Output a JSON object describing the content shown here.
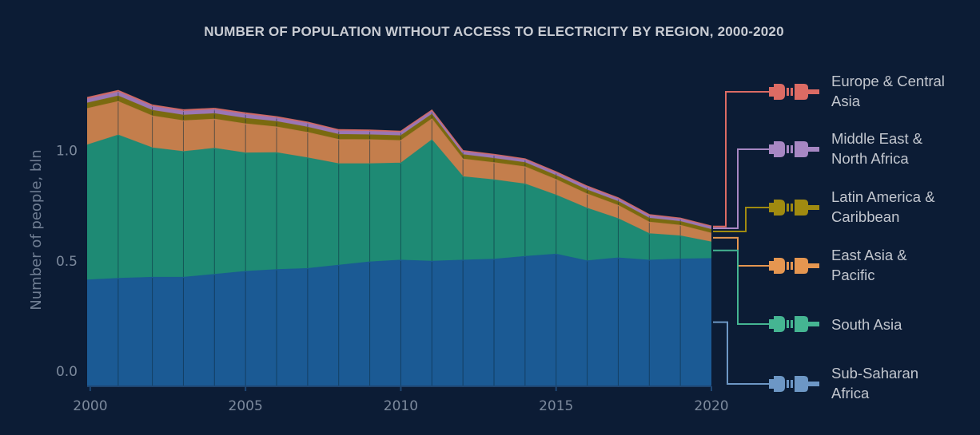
{
  "chart_data": {
    "type": "area",
    "stacked": true,
    "title": "NUMBER OF POPULATION  WITHOUT ACCESS TO ELECTRICITY  BY REGION, 2000-2020",
    "ylabel": "Number of people, bln",
    "xlabel": "",
    "x": [
      1999.9,
      2000.9,
      2002,
      2003,
      2004,
      2005,
      2006,
      2007,
      2008,
      2009,
      2010,
      2011,
      2012,
      2013,
      2014,
      2015,
      2016,
      2017,
      2018,
      2019,
      2020
    ],
    "xlim": [
      1999.9,
      2020
    ],
    "ylim": [
      0,
      1.35
    ],
    "x_ticks": [
      {
        "value": 2000,
        "label": "2000"
      },
      {
        "value": 2005,
        "label": "2005"
      },
      {
        "value": 2010,
        "label": "2010"
      },
      {
        "value": 2015,
        "label": "2015"
      },
      {
        "value": 2020,
        "label": "2020"
      }
    ],
    "y_ticks": [
      {
        "value": 0.0,
        "label": "0.0"
      },
      {
        "value": 0.5,
        "label": "0.5"
      },
      {
        "value": 1.0,
        "label": "1.0"
      }
    ],
    "grid": false,
    "legend_position": "right",
    "series": [
      {
        "name": "Sub-Saharan Africa",
        "color": "#1b5a94",
        "legend_color": "#6d97c5",
        "icon": "plug-icon",
        "values": [
          0.478,
          0.485,
          0.49,
          0.49,
          0.503,
          0.517,
          0.525,
          0.53,
          0.545,
          0.56,
          0.568,
          0.563,
          0.568,
          0.572,
          0.585,
          0.595,
          0.565,
          0.578,
          0.568,
          0.573,
          0.575
        ]
      },
      {
        "name": "South Asia",
        "color": "#1e8a74",
        "legend_color": "#45b592",
        "icon": "plug-icon",
        "values": [
          0.612,
          0.65,
          0.587,
          0.57,
          0.572,
          0.537,
          0.53,
          0.502,
          0.46,
          0.445,
          0.44,
          0.55,
          0.378,
          0.36,
          0.328,
          0.268,
          0.238,
          0.178,
          0.12,
          0.105,
          0.075
        ]
      },
      {
        "name": "East Asia & Pacific",
        "color": "#c47e4c",
        "legend_color": "#e59650",
        "icon": "plug-icon",
        "values": [
          0.165,
          0.152,
          0.145,
          0.14,
          0.132,
          0.132,
          0.117,
          0.115,
          0.11,
          0.109,
          0.102,
          0.095,
          0.08,
          0.078,
          0.078,
          0.07,
          0.065,
          0.06,
          0.052,
          0.048,
          0.04
        ]
      },
      {
        "name": "Latin America & Caribbean",
        "color": "#7a6a10",
        "legend_color": "#a08a10",
        "icon": "plug-icon",
        "values": [
          0.025,
          0.025,
          0.025,
          0.025,
          0.025,
          0.025,
          0.024,
          0.024,
          0.023,
          0.022,
          0.022,
          0.021,
          0.02,
          0.019,
          0.019,
          0.018,
          0.018,
          0.018,
          0.018,
          0.017,
          0.017
        ]
      },
      {
        "name": "Middle East & North Africa",
        "color": "#9b76b4",
        "legend_color": "#a787c3",
        "icon": "plug-icon",
        "values": [
          0.018,
          0.018,
          0.018,
          0.018,
          0.018,
          0.018,
          0.017,
          0.017,
          0.016,
          0.016,
          0.015,
          0.014,
          0.014,
          0.014,
          0.013,
          0.013,
          0.013,
          0.012,
          0.012,
          0.012,
          0.012
        ]
      },
      {
        "name": "Europe & Central Asia",
        "color": "#d36a66",
        "legend_color": "#dc6b64",
        "icon": "plug-icon",
        "values": [
          0.008,
          0.008,
          0.007,
          0.007,
          0.007,
          0.007,
          0.006,
          0.006,
          0.006,
          0.006,
          0.006,
          0.006,
          0.005,
          0.005,
          0.005,
          0.005,
          0.005,
          0.005,
          0.005,
          0.004,
          0.004
        ]
      }
    ],
    "legend_labels": [
      {
        "series": "Europe & Central Asia",
        "lines": [
          "Europe & Central",
          "Asia"
        ]
      },
      {
        "series": "Middle East & North Africa",
        "lines": [
          "Middle East &",
          "North Africa"
        ]
      },
      {
        "series": "Latin America & Caribbean",
        "lines": [
          "Latin America &",
          "Caribbean"
        ]
      },
      {
        "series": "East Asia & Pacific",
        "lines": [
          "East Asia &",
          "Pacific"
        ]
      },
      {
        "series": "South Asia",
        "lines": [
          "South Asia"
        ]
      },
      {
        "series": "Sub-Saharan Africa",
        "lines": [
          "Sub-Saharan",
          "Africa"
        ]
      }
    ],
    "colors": {
      "background": "#0c1c35",
      "axis_line": "#1f4672",
      "band_edge": "#0d2a3d"
    }
  }
}
